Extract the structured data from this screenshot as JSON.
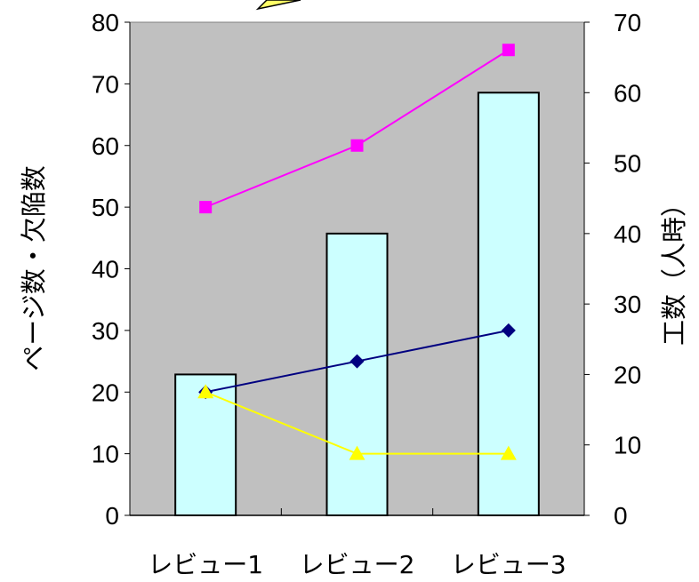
{
  "chart_data": {
    "type": "bar+line",
    "categories": [
      "レビュー1",
      "レビュー2",
      "レビュー3"
    ],
    "y_left": {
      "label": "ページ数・欠陥数",
      "range": [
        0,
        80
      ],
      "ticks": [
        0,
        10,
        20,
        30,
        40,
        50,
        60,
        70,
        80
      ]
    },
    "y_right": {
      "label": "工数（人時）",
      "range": [
        0,
        70
      ],
      "ticks": [
        0,
        10,
        20,
        30,
        40,
        50,
        60,
        70
      ]
    },
    "bars": {
      "axis": "right",
      "fill": "#ccffff",
      "values": [
        20,
        40,
        60
      ]
    },
    "lines": [
      {
        "axis": "left",
        "color": "#ff00ff",
        "marker": "square",
        "values": [
          50,
          60,
          75.5
        ]
      },
      {
        "axis": "left",
        "color": "#000080",
        "marker": "diamond",
        "values": [
          20,
          25,
          30
        ]
      },
      {
        "axis": "left",
        "color": "#ffff00",
        "marker": "triangle",
        "values": [
          20,
          10,
          10
        ]
      }
    ],
    "plot_background": "#c0c0c0",
    "grid": false,
    "legend": "none"
  }
}
